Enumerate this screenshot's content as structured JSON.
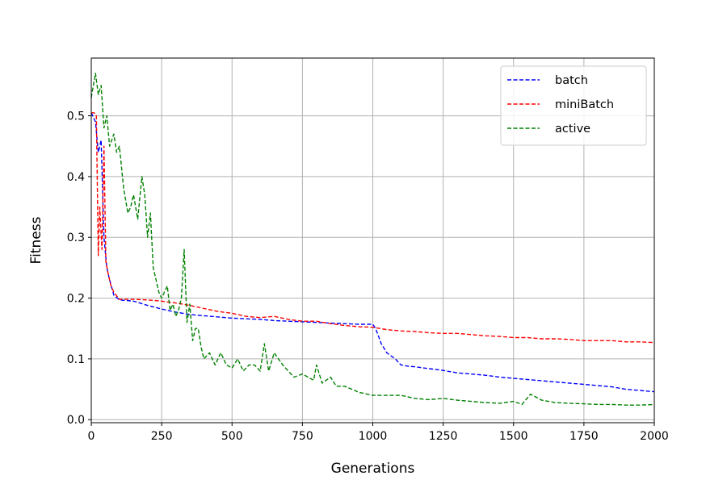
{
  "chart_data": {
    "type": "line",
    "title": "",
    "xlabel": "Generations",
    "ylabel": "Fitness",
    "xlim": [
      0,
      2000
    ],
    "ylim": [
      -0.005,
      0.595
    ],
    "xticks": [
      0,
      250,
      500,
      750,
      1000,
      1250,
      1500,
      1750,
      2000
    ],
    "xtick_labels": [
      "0",
      "250",
      "500",
      "750",
      "1000",
      "1250",
      "1500",
      "1750",
      "2000"
    ],
    "yticks": [
      0.0,
      0.1,
      0.2,
      0.3,
      0.4,
      0.5
    ],
    "ytick_labels": [
      "0.0",
      "0.1",
      "0.2",
      "0.3",
      "0.4",
      "0.5"
    ],
    "grid": true,
    "legend_position": "top-right",
    "series": [
      {
        "name": "batch",
        "color": "#0000ff",
        "x": [
          0,
          15,
          25,
          35,
          45,
          55,
          65,
          80,
          100,
          150,
          200,
          250,
          300,
          350,
          400,
          450,
          500,
          550,
          600,
          650,
          700,
          750,
          800,
          850,
          900,
          950,
          1000,
          1010,
          1030,
          1050,
          1080,
          1100,
          1125,
          1150,
          1200,
          1250,
          1300,
          1350,
          1400,
          1450,
          1500,
          1550,
          1600,
          1650,
          1700,
          1750,
          1800,
          1850,
          1900,
          1950,
          2000
        ],
        "y": [
          0.505,
          0.49,
          0.44,
          0.46,
          0.3,
          0.25,
          0.23,
          0.205,
          0.197,
          0.195,
          0.188,
          0.182,
          0.177,
          0.173,
          0.171,
          0.169,
          0.167,
          0.166,
          0.165,
          0.163,
          0.162,
          0.161,
          0.16,
          0.159,
          0.158,
          0.157,
          0.157,
          0.15,
          0.125,
          0.11,
          0.1,
          0.09,
          0.088,
          0.087,
          0.084,
          0.081,
          0.077,
          0.075,
          0.073,
          0.07,
          0.068,
          0.066,
          0.064,
          0.062,
          0.06,
          0.058,
          0.056,
          0.054,
          0.05,
          0.048,
          0.046
        ]
      },
      {
        "name": "miniBatch",
        "color": "#ff0000",
        "x": [
          0,
          10,
          18,
          25,
          30,
          38,
          45,
          52,
          60,
          70,
          80,
          100,
          150,
          200,
          250,
          300,
          350,
          400,
          450,
          500,
          550,
          600,
          650,
          700,
          750,
          800,
          850,
          900,
          950,
          1000,
          1050,
          1100,
          1150,
          1200,
          1250,
          1300,
          1350,
          1400,
          1450,
          1500,
          1550,
          1600,
          1650,
          1700,
          1750,
          1800,
          1850,
          1900,
          1950,
          2000
        ],
        "y": [
          0.505,
          0.505,
          0.5,
          0.27,
          0.35,
          0.28,
          0.45,
          0.26,
          0.24,
          0.22,
          0.21,
          0.198,
          0.198,
          0.197,
          0.195,
          0.192,
          0.188,
          0.183,
          0.178,
          0.175,
          0.17,
          0.168,
          0.17,
          0.165,
          0.162,
          0.162,
          0.158,
          0.155,
          0.153,
          0.152,
          0.148,
          0.146,
          0.145,
          0.143,
          0.142,
          0.142,
          0.14,
          0.138,
          0.137,
          0.135,
          0.135,
          0.133,
          0.133,
          0.132,
          0.13,
          0.13,
          0.13,
          0.128,
          0.128,
          0.127
        ]
      },
      {
        "name": "active",
        "color": "#008000",
        "x": [
          0,
          15,
          25,
          35,
          45,
          55,
          65,
          80,
          90,
          100,
          115,
          130,
          140,
          150,
          165,
          180,
          190,
          200,
          210,
          220,
          230,
          240,
          250,
          260,
          270,
          280,
          290,
          300,
          310,
          320,
          330,
          340,
          350,
          360,
          370,
          380,
          390,
          400,
          420,
          440,
          460,
          480,
          500,
          520,
          540,
          560,
          580,
          600,
          615,
          630,
          650,
          680,
          700,
          720,
          750,
          790,
          800,
          820,
          850,
          870,
          900,
          950,
          1000,
          1050,
          1100,
          1150,
          1200,
          1250,
          1300,
          1350,
          1400,
          1450,
          1500,
          1530,
          1560,
          1600,
          1650,
          1700,
          1750,
          1800,
          1850,
          1900,
          1950,
          2000
        ],
        "y": [
          0.53,
          0.57,
          0.535,
          0.55,
          0.48,
          0.5,
          0.45,
          0.47,
          0.44,
          0.45,
          0.38,
          0.34,
          0.35,
          0.37,
          0.33,
          0.4,
          0.37,
          0.3,
          0.34,
          0.25,
          0.23,
          0.21,
          0.2,
          0.21,
          0.22,
          0.18,
          0.19,
          0.17,
          0.18,
          0.2,
          0.28,
          0.16,
          0.19,
          0.13,
          0.15,
          0.15,
          0.12,
          0.1,
          0.11,
          0.09,
          0.11,
          0.09,
          0.085,
          0.1,
          0.08,
          0.09,
          0.09,
          0.08,
          0.125,
          0.08,
          0.11,
          0.09,
          0.08,
          0.07,
          0.075,
          0.065,
          0.09,
          0.06,
          0.07,
          0.055,
          0.055,
          0.045,
          0.04,
          0.04,
          0.04,
          0.035,
          0.033,
          0.035,
          0.032,
          0.03,
          0.028,
          0.027,
          0.03,
          0.025,
          0.042,
          0.032,
          0.028,
          0.027,
          0.026,
          0.025,
          0.025,
          0.024,
          0.024,
          0.025
        ]
      }
    ]
  }
}
